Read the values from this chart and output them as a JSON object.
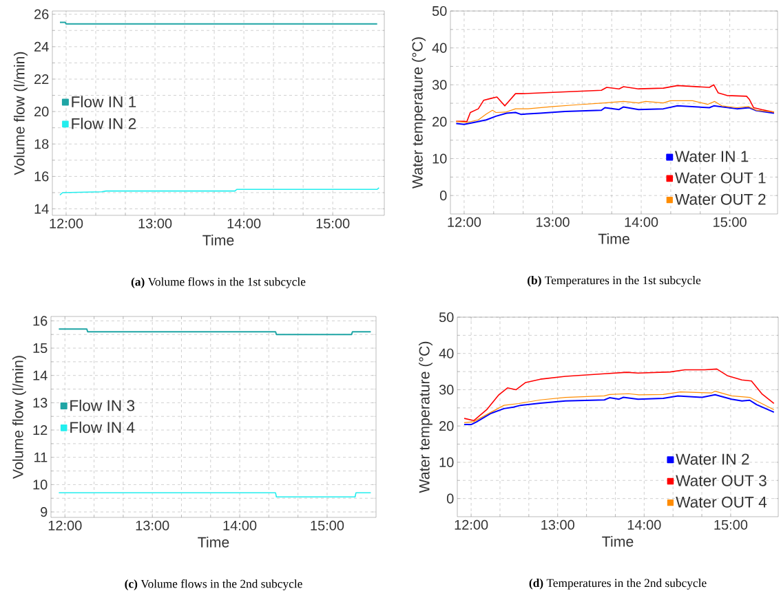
{
  "chart_data": [
    {
      "type": "line",
      "title": "**(a)** Volume flows in the 1st subcycle",
      "xlabel": "Time",
      "ylabel": "Volume flow (l/min)",
      "xlim": [
        11.845,
        15.58
      ],
      "ylim": [
        13.6,
        26.2
      ],
      "xticks": [
        {
          "value": 12,
          "label": "12:00"
        },
        {
          "value": 13,
          "label": "13:00"
        },
        {
          "value": 14,
          "label": "14:00"
        },
        {
          "value": 15,
          "label": "15:00"
        }
      ],
      "yticks": [
        14,
        16,
        18,
        20,
        22,
        24,
        26
      ],
      "grid": true,
      "legend": "left",
      "series": [
        {
          "name": "Flow IN 1",
          "color": "#1fa5a5",
          "x": [
            11.93,
            11.99,
            12.0,
            15.5
          ],
          "values": [
            25.5,
            25.5,
            25.4,
            25.4
          ]
        },
        {
          "name": "Flow IN 2",
          "color": "#22eeee",
          "x": [
            11.93,
            11.96,
            12.4,
            12.45,
            13.9,
            13.92,
            15.5,
            15.52
          ],
          "values": [
            14.85,
            15.0,
            15.05,
            15.1,
            15.1,
            15.2,
            15.2,
            15.3
          ]
        }
      ]
    },
    {
      "type": "line",
      "title": "**(b)** Temperatures in the 1st subcycle",
      "xlabel": "Time",
      "ylabel": "Water temperature (°C)",
      "xlim": [
        11.845,
        15.54
      ],
      "ylim": [
        -5,
        50
      ],
      "xticks": [
        {
          "value": 12,
          "label": "12:00"
        },
        {
          "value": 13,
          "label": "13:00"
        },
        {
          "value": 14,
          "label": "14:00"
        },
        {
          "value": 15,
          "label": "15:00"
        }
      ],
      "yticks": [
        0,
        10,
        20,
        30,
        40,
        50
      ],
      "grid": true,
      "legend": "bottom right",
      "series": [
        {
          "name": "Water IN 1",
          "color": "#0000ff",
          "x": [
            11.91,
            12.0,
            12.11,
            12.25,
            12.36,
            12.48,
            12.58,
            12.64,
            12.86,
            13.14,
            13.55,
            13.59,
            13.75,
            13.8,
            13.97,
            14.25,
            14.41,
            14.77,
            14.82,
            15.08,
            15.22,
            15.3,
            15.5
          ],
          "values": [
            19.5,
            19.3,
            19.8,
            20.5,
            21.5,
            22.3,
            22.5,
            22.0,
            22.3,
            22.8,
            23.1,
            23.8,
            23.3,
            24.0,
            23.3,
            23.5,
            24.3,
            23.8,
            24.3,
            23.5,
            23.8,
            23.0,
            22.3
          ]
        },
        {
          "name": "Water OUT 1",
          "color": "#ff0000",
          "x": [
            11.91,
            12.0,
            12.03,
            12.07,
            12.16,
            12.22,
            12.3,
            12.37,
            12.46,
            12.58,
            12.66,
            13.14,
            13.55,
            13.61,
            13.75,
            13.8,
            13.97,
            14.25,
            14.41,
            14.77,
            14.82,
            14.87,
            14.97,
            15.19,
            15.22,
            15.27,
            15.36,
            15.5
          ],
          "values": [
            20.1,
            20.1,
            20.0,
            22.5,
            23.5,
            25.8,
            26.3,
            26.7,
            24.3,
            27.6,
            27.6,
            28.1,
            28.5,
            29.3,
            28.9,
            29.5,
            28.9,
            29.1,
            29.8,
            29.3,
            30.0,
            27.8,
            27.1,
            26.9,
            26.1,
            23.8,
            23.3,
            22.6
          ]
        },
        {
          "name": "Water OUT 2",
          "color": "#ff8c00",
          "x": [
            11.91,
            12.03,
            12.16,
            12.25,
            12.32,
            12.36,
            12.47,
            12.58,
            12.72,
            13.0,
            13.28,
            13.58,
            13.8,
            13.97,
            14.05,
            14.25,
            14.33,
            14.58,
            14.75,
            14.83,
            14.91,
            15.08,
            15.21,
            15.3,
            15.5
          ],
          "values": [
            20.1,
            19.8,
            20.5,
            22.1,
            23.1,
            22.5,
            22.6,
            23.5,
            23.5,
            24.1,
            24.6,
            25.1,
            25.5,
            25.1,
            25.5,
            25.1,
            25.7,
            25.7,
            24.7,
            25.5,
            24.3,
            23.8,
            24.1,
            23.1,
            22.6
          ]
        }
      ]
    },
    {
      "type": "line",
      "title": "**(c)** Volume flows in the 2nd subcycle",
      "xlabel": "Time",
      "ylabel": "Volume flow (l/min)",
      "xlim": [
        11.84,
        15.56
      ],
      "ylim": [
        8.8,
        16.16
      ],
      "xticks": [
        {
          "value": 12,
          "label": "12:00"
        },
        {
          "value": 13,
          "label": "13:00"
        },
        {
          "value": 14,
          "label": "14:00"
        },
        {
          "value": 15,
          "label": "15:00"
        }
      ],
      "yticks": [
        9,
        10,
        11,
        12,
        13,
        14,
        15,
        16
      ],
      "grid": true,
      "legend": "left",
      "series": [
        {
          "name": "Flow IN 3",
          "color": "#1fa5a5",
          "x": [
            11.93,
            12.25,
            12.26,
            14.41,
            14.42,
            15.28,
            15.29,
            15.5
          ],
          "values": [
            15.7,
            15.7,
            15.6,
            15.6,
            15.5,
            15.5,
            15.6,
            15.6
          ]
        },
        {
          "name": "Flow IN 4",
          "color": "#22eeee",
          "x": [
            11.93,
            14.41,
            14.42,
            15.32,
            15.33,
            15.5
          ],
          "values": [
            9.7,
            9.7,
            9.55,
            9.55,
            9.7,
            9.7
          ]
        }
      ]
    },
    {
      "type": "line",
      "title": "**(d)** Temperatures in the 2nd subcycle",
      "xlabel": "Time",
      "ylabel": "Water temperature (°C)",
      "xlim": [
        11.84,
        15.55
      ],
      "ylim": [
        -5,
        50
      ],
      "xticks": [
        {
          "value": 12,
          "label": "12:00"
        },
        {
          "value": 13,
          "label": "13:00"
        },
        {
          "value": 14,
          "label": "14:00"
        },
        {
          "value": 15,
          "label": "15:00"
        }
      ],
      "yticks": [
        0,
        10,
        20,
        30,
        40,
        50
      ],
      "grid": true,
      "legend": "bottom right",
      "series": [
        {
          "name": "Water IN 2",
          "color": "#0000ff",
          "x": [
            11.92,
            12.0,
            12.06,
            12.23,
            12.38,
            12.49,
            12.57,
            12.8,
            13.09,
            13.54,
            13.6,
            13.71,
            13.76,
            13.93,
            14.22,
            14.39,
            14.67,
            14.82,
            15.01,
            15.13,
            15.22,
            15.3,
            15.5
          ],
          "values": [
            20.4,
            20.4,
            21.1,
            23.5,
            24.8,
            25.2,
            25.7,
            26.3,
            26.9,
            27.2,
            27.8,
            27.4,
            27.9,
            27.4,
            27.6,
            28.3,
            27.9,
            28.6,
            27.4,
            26.9,
            27.1,
            25.9,
            23.8
          ]
        },
        {
          "name": "Water OUT 3",
          "color": "#ff0000",
          "x": [
            11.92,
            12.03,
            12.18,
            12.32,
            12.42,
            12.52,
            12.63,
            12.8,
            13.09,
            13.54,
            13.8,
            13.93,
            14.3,
            14.47,
            14.7,
            14.84,
            14.96,
            15.13,
            15.24,
            15.36,
            15.5
          ],
          "values": [
            22.1,
            21.5,
            24.5,
            28.6,
            30.5,
            30.0,
            32.0,
            32.9,
            33.7,
            34.4,
            34.8,
            34.6,
            34.9,
            35.5,
            35.5,
            35.7,
            33.9,
            32.7,
            32.4,
            28.9,
            26.2
          ]
        },
        {
          "name": "Water OUT 4",
          "color": "#ff8c00",
          "x": [
            11.92,
            12.03,
            12.23,
            12.38,
            12.55,
            12.8,
            13.09,
            13.54,
            13.6,
            13.82,
            13.94,
            14.22,
            14.42,
            14.78,
            14.82,
            15.01,
            15.22,
            15.3,
            15.5
          ],
          "values": [
            20.9,
            21.2,
            23.8,
            25.7,
            26.2,
            27.2,
            27.9,
            28.3,
            28.7,
            28.9,
            28.6,
            28.7,
            29.4,
            29.1,
            29.6,
            28.3,
            27.9,
            26.9,
            24.5
          ]
        }
      ]
    }
  ]
}
